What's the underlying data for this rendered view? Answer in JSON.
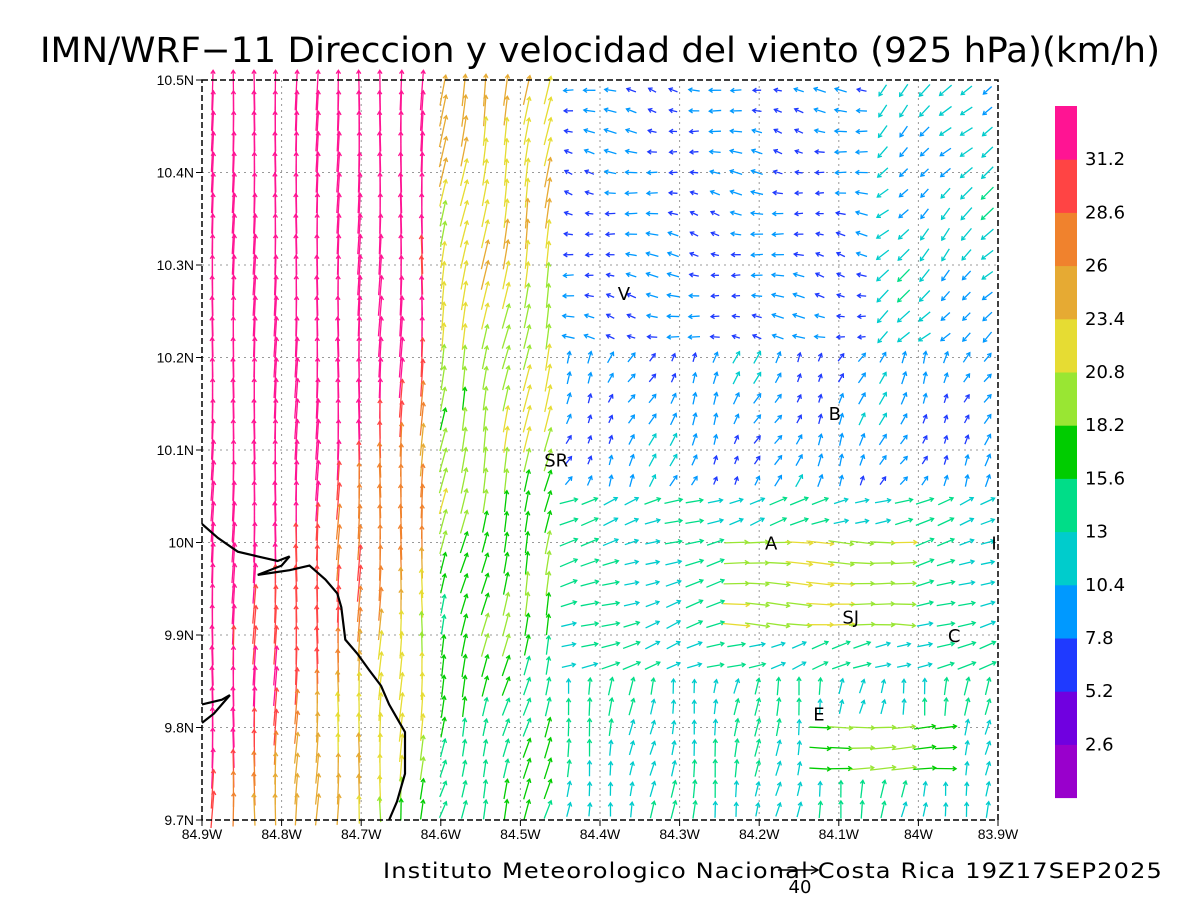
{
  "title": "IMN/WRF−11 Direccion y velocidad del viento (925 hPa)(km/h)",
  "footer": "Instituto Meteorologico Nacional Costa Rica 19Z17SEP2025",
  "reference_vector": {
    "label": "40",
    "value": 40
  },
  "map": {
    "lon_range": [
      -84.9,
      -83.9
    ],
    "lat_range": [
      9.7,
      10.5
    ],
    "x_ticks": [
      "84.9W",
      "84.8W",
      "84.7W",
      "84.6W",
      "84.5W",
      "84.4W",
      "84.3W",
      "84.2W",
      "84.1W",
      "84W",
      "83.9W"
    ],
    "y_ticks": [
      "9.7N",
      "9.8N",
      "9.9N",
      "10N",
      "10.1N",
      "10.2N",
      "10.3N",
      "10.4N",
      "10.5N"
    ],
    "grid": "dotted",
    "places": [
      {
        "name": "V",
        "lon": -84.37,
        "lat": 10.27
      },
      {
        "name": "B",
        "lon": -84.105,
        "lat": 10.14
      },
      {
        "name": "SR",
        "lon": -84.455,
        "lat": 10.09
      },
      {
        "name": "A",
        "lon": -84.185,
        "lat": 10.0
      },
      {
        "name": "I",
        "lon": -83.905,
        "lat": 10.0
      },
      {
        "name": "SJ",
        "lon": -84.085,
        "lat": 9.92
      },
      {
        "name": "C",
        "lon": -83.955,
        "lat": 9.9
      },
      {
        "name": "E",
        "lon": -84.125,
        "lat": 9.815
      }
    ],
    "coastline": [
      [
        -84.9,
        10.02
      ],
      [
        -84.88,
        10.005
      ],
      [
        -84.855,
        9.99
      ],
      [
        -84.83,
        9.985
      ],
      [
        -84.805,
        9.98
      ],
      [
        -84.79,
        9.985
      ],
      [
        -84.8,
        9.975
      ],
      [
        -84.83,
        9.965
      ],
      [
        -84.79,
        9.97
      ],
      [
        -84.765,
        9.975
      ],
      [
        -84.745,
        9.96
      ],
      [
        -84.73,
        9.945
      ],
      [
        -84.725,
        9.93
      ],
      [
        -84.72,
        9.895
      ],
      [
        -84.705,
        9.88
      ],
      [
        -84.69,
        9.862
      ],
      [
        -84.675,
        9.845
      ],
      [
        -84.665,
        9.825
      ],
      [
        -84.655,
        9.81
      ],
      [
        -84.645,
        9.795
      ],
      [
        -84.645,
        9.75
      ],
      [
        -84.655,
        9.72
      ],
      [
        -84.665,
        9.7
      ]
    ],
    "coastline_island": [
      [
        -84.9,
        9.805
      ],
      [
        -84.885,
        9.815
      ],
      [
        -84.865,
        9.835
      ],
      [
        -84.875,
        9.83
      ],
      [
        -84.9,
        9.825
      ]
    ]
  },
  "colorbar": {
    "colors": [
      "#9900cc",
      "#7000e0",
      "#1f3aff",
      "#0099ff",
      "#00cccc",
      "#00dd88",
      "#00cc00",
      "#99e633",
      "#e6dc33",
      "#e6aa33",
      "#f0822d",
      "#ff4444",
      "#ff1493"
    ],
    "labels": [
      "2.6",
      "5.2",
      "7.8",
      "10.4",
      "13",
      "15.6",
      "18.2",
      "20.8",
      "23.4",
      "26",
      "28.6",
      "31.2"
    ]
  }
}
